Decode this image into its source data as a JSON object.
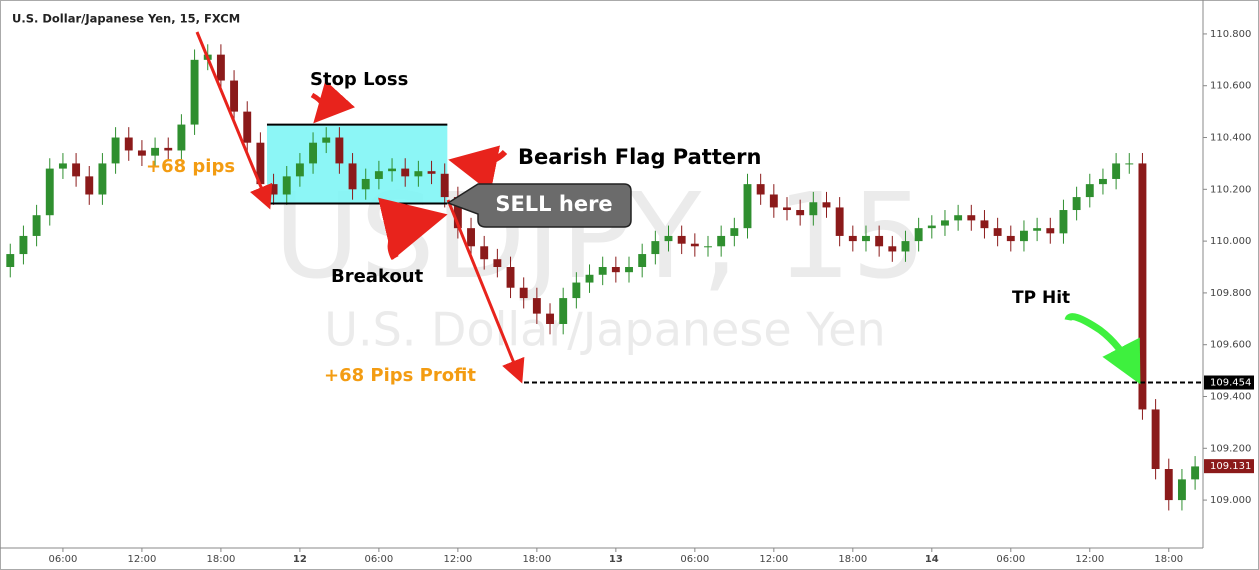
{
  "chart_data": {
    "type": "candlestick",
    "title": "U.S. Dollar/Japanese Yen, 15, FXCM",
    "watermark": {
      "symbol": "USDJPY, 15",
      "name": "U.S. Dollar/Japanese Yen"
    },
    "annotations": {
      "stop_loss": "Stop Loss",
      "pattern": "Bearish Flag Pattern",
      "pips": "+68 pips",
      "sell": "SELL here",
      "breakout": "Breakout",
      "profit": "+68 Pips Profit",
      "tp": "TP Hit"
    },
    "up_color": "#2f8f2f",
    "down_color": "#8b1a1a",
    "x": [
      2,
      3,
      4,
      5,
      6,
      7,
      8,
      9,
      10,
      11,
      12,
      13,
      14,
      15,
      16,
      17,
      18,
      19,
      20,
      21,
      22,
      23,
      24,
      25,
      26,
      27,
      28,
      29,
      30,
      31,
      32,
      33,
      34,
      35,
      36,
      37,
      38,
      39,
      40,
      41,
      42,
      43,
      44,
      45,
      46,
      47,
      48,
      49,
      50,
      51,
      52,
      53,
      54,
      55,
      56,
      57,
      58,
      59,
      60,
      61,
      62,
      63,
      64,
      65,
      66,
      67,
      68,
      69,
      70,
      71,
      72,
      73,
      74,
      75,
      76,
      77,
      78,
      79,
      80,
      81,
      82,
      83,
      84,
      85,
      86,
      87,
      88,
      89,
      90,
      91,
      92
    ],
    "open": [
      109.9,
      109.95,
      110.02,
      110.1,
      110.28,
      110.3,
      110.25,
      110.18,
      110.3,
      110.4,
      110.35,
      110.33,
      110.36,
      110.35,
      110.45,
      110.7,
      110.72,
      110.62,
      110.5,
      110.38,
      110.22,
      110.18,
      110.25,
      110.3,
      110.38,
      110.4,
      110.3,
      110.2,
      110.24,
      110.27,
      110.28,
      110.25,
      110.27,
      110.26,
      110.17,
      110.05,
      109.98,
      109.93,
      109.9,
      109.82,
      109.78,
      109.72,
      109.68,
      109.78,
      109.84,
      109.87,
      109.9,
      109.88,
      109.9,
      109.95,
      110.0,
      110.02,
      109.99,
      109.98,
      109.98,
      110.02,
      110.05,
      110.22,
      110.18,
      110.13,
      110.12,
      110.1,
      110.15,
      110.13,
      110.02,
      110.0,
      110.02,
      109.98,
      109.96,
      110.0,
      110.05,
      110.06,
      110.08,
      110.1,
      110.08,
      110.05,
      110.02,
      110.0,
      110.04,
      110.05,
      110.03,
      110.12,
      110.17,
      110.22,
      110.24,
      110.3,
      110.3,
      109.35,
      109.12,
      109.0,
      109.08
    ],
    "high": [
      109.99,
      110.06,
      110.14,
      110.32,
      110.34,
      110.34,
      110.29,
      110.34,
      110.44,
      110.44,
      110.39,
      110.4,
      110.4,
      110.49,
      110.74,
      110.76,
      110.76,
      110.66,
      110.54,
      110.42,
      110.26,
      110.29,
      110.34,
      110.42,
      110.44,
      110.44,
      110.34,
      110.28,
      110.31,
      110.32,
      110.32,
      110.31,
      110.31,
      110.3,
      110.21,
      110.09,
      110.02,
      109.97,
      109.94,
      109.86,
      109.82,
      109.76,
      109.82,
      109.88,
      109.91,
      109.94,
      109.94,
      109.94,
      109.99,
      110.04,
      110.06,
      110.06,
      110.03,
      110.02,
      110.06,
      110.09,
      110.26,
      110.26,
      110.22,
      110.17,
      110.16,
      110.19,
      110.19,
      110.17,
      110.06,
      110.06,
      110.06,
      110.02,
      110.04,
      110.09,
      110.1,
      110.12,
      110.14,
      110.14,
      110.12,
      110.09,
      110.06,
      110.08,
      110.09,
      110.09,
      110.16,
      110.21,
      110.26,
      110.28,
      110.34,
      110.34,
      110.34,
      109.39,
      109.16,
      109.12,
      109.17
    ],
    "low": [
      109.86,
      109.91,
      109.98,
      110.06,
      110.24,
      110.21,
      110.14,
      110.14,
      110.26,
      110.31,
      110.29,
      110.29,
      110.31,
      110.31,
      110.41,
      110.66,
      110.58,
      110.46,
      110.34,
      110.18,
      110.14,
      110.14,
      110.21,
      110.26,
      110.34,
      110.26,
      110.16,
      110.16,
      110.2,
      110.23,
      110.21,
      110.21,
      110.22,
      110.13,
      110.01,
      109.94,
      109.89,
      109.86,
      109.78,
      109.74,
      109.68,
      109.64,
      109.64,
      109.74,
      109.8,
      109.83,
      109.84,
      109.84,
      109.86,
      109.91,
      109.96,
      109.95,
      109.94,
      109.94,
      109.94,
      109.98,
      110.01,
      110.14,
      110.09,
      110.08,
      110.06,
      110.06,
      110.09,
      109.98,
      109.96,
      109.96,
      109.94,
      109.92,
      109.92,
      109.96,
      110.01,
      110.02,
      110.04,
      110.04,
      110.01,
      109.98,
      109.96,
      109.96,
      110.0,
      109.99,
      109.99,
      110.08,
      110.13,
      110.18,
      110.2,
      110.26,
      109.31,
      109.08,
      108.96,
      108.96,
      109.04
    ],
    "close": [
      109.95,
      110.02,
      110.1,
      110.28,
      110.3,
      110.25,
      110.18,
      110.3,
      110.4,
      110.35,
      110.33,
      110.36,
      110.35,
      110.45,
      110.7,
      110.72,
      110.62,
      110.5,
      110.38,
      110.22,
      110.18,
      110.25,
      110.3,
      110.38,
      110.4,
      110.3,
      110.2,
      110.24,
      110.27,
      110.28,
      110.25,
      110.27,
      110.26,
      110.17,
      110.05,
      109.98,
      109.93,
      109.9,
      109.82,
      109.78,
      109.72,
      109.68,
      109.78,
      109.84,
      109.87,
      109.9,
      109.88,
      109.9,
      109.95,
      110.0,
      110.02,
      109.99,
      109.98,
      109.98,
      110.02,
      110.05,
      110.22,
      110.18,
      110.13,
      110.12,
      110.1,
      110.15,
      110.13,
      110.02,
      110.0,
      110.02,
      109.98,
      109.96,
      110.0,
      110.05,
      110.06,
      110.08,
      110.1,
      110.08,
      110.05,
      110.02,
      110.0,
      110.04,
      110.05,
      110.03,
      110.12,
      110.17,
      110.22,
      110.24,
      110.3,
      110.3,
      109.35,
      109.12,
      109.0,
      109.08,
      109.13
    ],
    "xlim": [
      1.6,
      92.6
    ],
    "xticks": [
      {
        "value": 6,
        "label": "06:00"
      },
      {
        "value": 12,
        "label": "12:00"
      },
      {
        "value": 18,
        "label": "18:00"
      },
      {
        "value": 24,
        "label": "12"
      },
      {
        "value": 30,
        "label": "06:00"
      },
      {
        "value": 36,
        "label": "12:00"
      },
      {
        "value": 42,
        "label": "18:00"
      },
      {
        "value": 48,
        "label": "13"
      },
      {
        "value": 54,
        "label": "06:00"
      },
      {
        "value": 60,
        "label": "12:00"
      },
      {
        "value": 66,
        "label": "18:00"
      },
      {
        "value": 72,
        "label": "14"
      },
      {
        "value": 78,
        "label": "06:00"
      },
      {
        "value": 84,
        "label": "12:00"
      },
      {
        "value": 90,
        "label": "18:00"
      }
    ],
    "ylim": [
      108.815,
      110.931
    ],
    "yticks": [
      {
        "value": 109.0,
        "label": "109.000"
      },
      {
        "value": 109.2,
        "label": "109.200"
      },
      {
        "value": 109.4,
        "label": "109.400"
      },
      {
        "value": 109.6,
        "label": "109.600"
      },
      {
        "value": 109.8,
        "label": "109.800"
      },
      {
        "value": 110.0,
        "label": "110.000"
      },
      {
        "value": 110.2,
        "label": "110.200"
      },
      {
        "value": 110.4,
        "label": "110.400"
      },
      {
        "value": 110.6,
        "label": "110.600"
      },
      {
        "value": 110.8,
        "label": "110.800"
      }
    ],
    "tp_level": 109.454,
    "last_price": 109.131,
    "flag_box": {
      "x": [
        21.5,
        35.2
      ],
      "y": [
        110.145,
        110.45
      ]
    }
  }
}
